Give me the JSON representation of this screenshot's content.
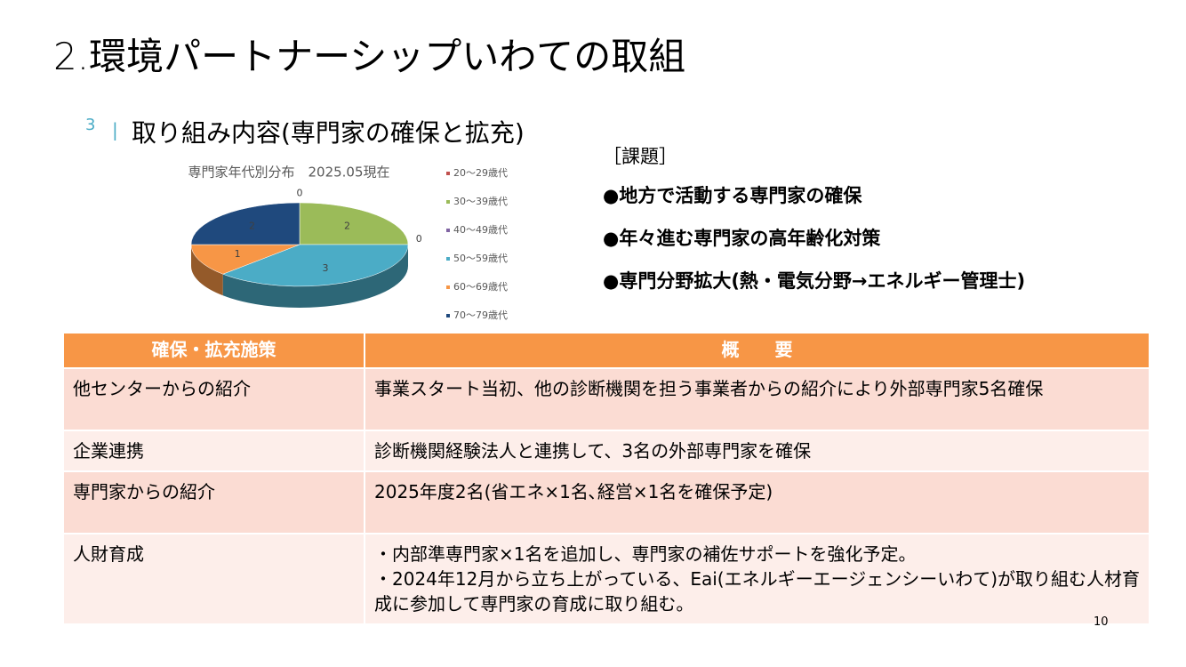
{
  "header": {
    "title": "2.環境パートナーシップいわての取組"
  },
  "section": {
    "number": "3",
    "divider": "|",
    "title": "取り組み内容(専門家の確保と拡充)"
  },
  "chart_data": {
    "type": "pie",
    "title": "専門家年代別分布　2025.05現在",
    "categories": [
      "20～29歳代",
      "30～39歳代",
      "40～49歳代",
      "50～59歳代",
      "60～69歳代",
      "70～79歳代"
    ],
    "values": [
      0,
      2,
      0,
      3,
      1,
      2
    ],
    "colors": [
      "#c0504d",
      "#9bbb59",
      "#8064a2",
      "#4bacc6",
      "#f79646",
      "#1f497d"
    ],
    "legend": "right"
  },
  "issues": {
    "heading": "［課題］",
    "items": [
      "●地方で活動する専門家の確保",
      "●年々進む専門家の高年齢化対策",
      "●専門分野拡大(熱・電気分野→エネルギー管理士)"
    ]
  },
  "table": {
    "header": [
      "確保・拡充施策",
      "概　　要"
    ],
    "rows": [
      [
        "他センターからの紹介",
        [
          "事業スタート当初、他の診断機関を担う事業者からの紹介により外部専門家5名確保"
        ]
      ],
      [
        "企業連携",
        [
          "診断機関経験法人と連携して、3名の外部専門家を確保"
        ]
      ],
      [
        "専門家からの紹介",
        [
          "2025年度2名(省エネ×1名､経営×1名を確保予定)"
        ]
      ],
      [
        "人財育成",
        [
          "・内部準専門家×1名を追加し、専門家の補佐サポートを強化予定。",
          "・2024年12月から立ち上がっている、Eai(エネルギーエージェンシーいわて)が取り組む人材育成に参加して専門家の育成に取り組む。"
        ]
      ]
    ]
  },
  "page_number": "10"
}
